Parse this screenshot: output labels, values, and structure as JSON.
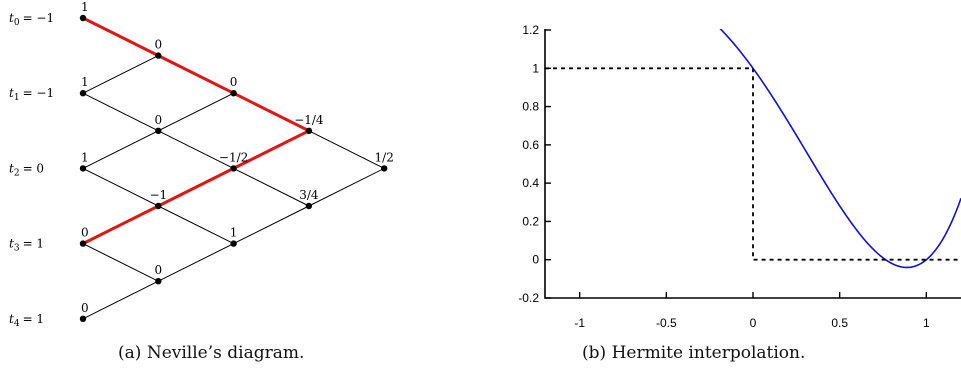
{
  "neville": {
    "rows": [
      {
        "lhs": "t",
        "sub": "0",
        "rhs": "= −1"
      },
      {
        "lhs": "t",
        "sub": "1",
        "rhs": "= −1"
      },
      {
        "lhs": "t",
        "sub": "2",
        "rhs": "= 0"
      },
      {
        "lhs": "t",
        "sub": "3",
        "rhs": "= 1"
      },
      {
        "lhs": "t",
        "sub": "4",
        "rhs": "= 1"
      }
    ],
    "node_labels": {
      "c0": [
        "1",
        "1",
        "1",
        "0",
        "0"
      ],
      "c1": [
        "0",
        "0",
        "−1",
        "0"
      ],
      "c2": [
        "0",
        "−1/2",
        "1"
      ],
      "c3": [
        "−1/4",
        "3/4"
      ],
      "c4": [
        "1/2"
      ]
    },
    "highlight_path": [
      [
        0,
        0
      ],
      [
        1,
        0
      ],
      [
        2,
        0
      ],
      [
        3,
        0
      ],
      [
        2,
        1
      ],
      [
        1,
        2
      ],
      [
        0,
        3
      ]
    ],
    "highlight_color": "#e41414",
    "caption_prefix": "(a)",
    "caption_text": "Neville’s diagram."
  },
  "chart_data": {
    "type": "line",
    "xlim": [
      -1.2,
      1.2
    ],
    "ylim": [
      -0.2,
      1.2
    ],
    "x_ticks": [
      -1,
      -0.5,
      0,
      0.5,
      1
    ],
    "x_tick_labels": [
      "-1",
      "-0.5",
      "0",
      "0.5",
      "1"
    ],
    "y_ticks": [
      -0.2,
      0,
      0.2,
      0.4,
      0.6,
      0.8,
      1,
      1.2
    ],
    "y_tick_labels": [
      "-0.2",
      "0",
      "0.2",
      "0.4",
      "0.6",
      "0.8",
      "1",
      "1.2"
    ],
    "series": [
      {
        "style": "solid",
        "color": "#1010dd",
        "polynomial_coefficients": [
          1,
          -1.25,
          -0.75,
          0.5,
          0.5
        ]
      },
      {
        "style": "dashed",
        "color": "#000000",
        "x": [
          -1.2,
          0,
          0,
          1.2
        ],
        "y": [
          1,
          1,
          0,
          0
        ]
      }
    ],
    "caption_prefix": "(b)",
    "caption_text": "Hermite interpolation."
  }
}
